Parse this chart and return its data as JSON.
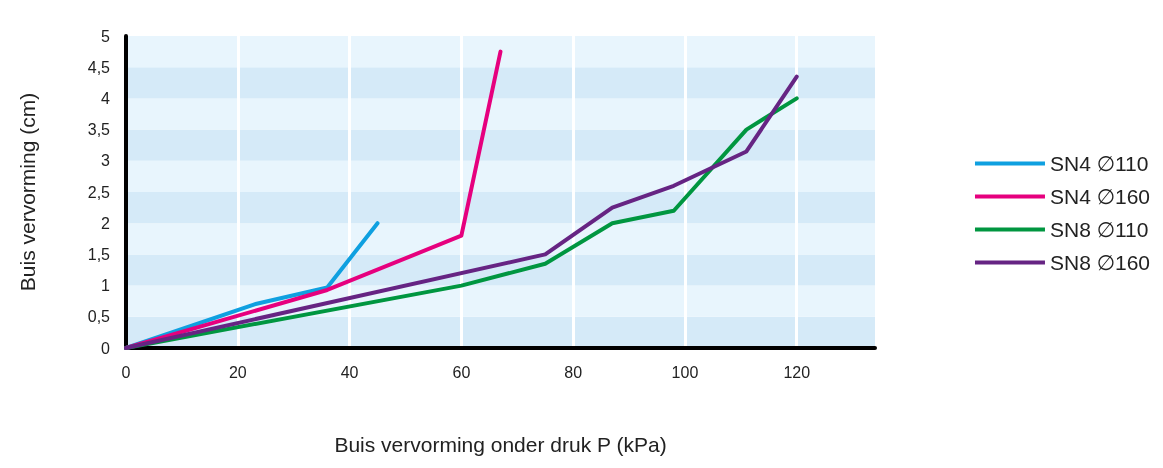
{
  "chart_data": {
    "type": "line",
    "xlabel": "Buis vervorming onder druk P (kPa)",
    "ylabel": "Buis vervorming (cm)",
    "xlim": [
      0,
      134
    ],
    "xticks": [
      0,
      20,
      40,
      60,
      80,
      100,
      120
    ],
    "ylim": [
      0,
      5
    ],
    "yticks": [
      {
        "value": 0,
        "label": "0"
      },
      {
        "value": 0.5,
        "label": "0,5"
      },
      {
        "value": 1,
        "label": "1"
      },
      {
        "value": 1.5,
        "label": "1,5"
      },
      {
        "value": 2,
        "label": "2"
      },
      {
        "value": 2.5,
        "label": "2,5"
      },
      {
        "value": 3,
        "label": "3"
      },
      {
        "value": 3.5,
        "label": "3,5"
      },
      {
        "value": 4,
        "label": "4"
      },
      {
        "value": 4.5,
        "label": "4,5"
      },
      {
        "value": 5,
        "label": "5"
      }
    ],
    "grid": "x",
    "legend": "right",
    "marker": "none",
    "line_style": "solid",
    "series": [
      {
        "name": "SN4 ∅110",
        "color": "#0fa0e0",
        "x": [
          0,
          23,
          36,
          45
        ],
        "values": [
          0,
          0.7,
          0.97,
          2
        ]
      },
      {
        "name": "SN4 ∅160",
        "color": "#e6007e",
        "x": [
          0,
          36,
          60,
          67
        ],
        "values": [
          0,
          0.93,
          1.8,
          4.75
        ]
      },
      {
        "name": "SN8 ∅110",
        "color": "#009640",
        "x": [
          0,
          60,
          75,
          87,
          98,
          111,
          120
        ],
        "values": [
          0,
          1,
          1.35,
          2,
          2.2,
          3.5,
          4
        ]
      },
      {
        "name": "SN8 ∅160",
        "color": "#662483",
        "x": [
          0,
          75,
          87,
          98,
          111,
          120
        ],
        "values": [
          0,
          1.5,
          2.25,
          2.6,
          3.15,
          4.35
        ]
      }
    ]
  }
}
